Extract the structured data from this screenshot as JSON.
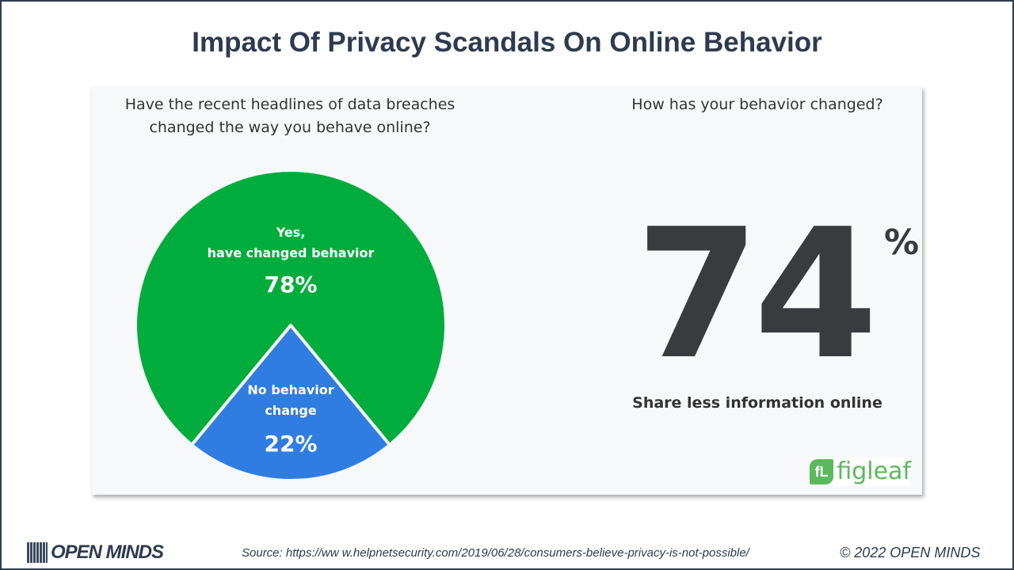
{
  "title": "Impact Of Privacy Scandals On Online Behavior",
  "chart_data": [
    {
      "type": "pie",
      "title": "Have the recent headlines of data breaches changed the way you behave online?",
      "slices": [
        {
          "label_line1": "Yes,",
          "label_line2": "have changed behavior",
          "value": 78,
          "display": "78%",
          "color": "#00ad3c"
        },
        {
          "label_line1": "No behavior",
          "label_line2": "change",
          "value": 22,
          "display": "22%",
          "color": "#2f7de1"
        }
      ]
    },
    {
      "type": "stat",
      "title": "How has your behavior changed?",
      "value": "74",
      "unit": "%",
      "caption": "Share less information online"
    }
  ],
  "brand": {
    "figleaf_mark": "fL",
    "figleaf_word": "figleaf"
  },
  "footer": {
    "logo": "OPEN MINDS",
    "source": "Source: https://ww w.helpnetsecurity.com/2019/06/28/consumers-believe-privacy-is-not-possible/",
    "copyright": "© 2022 OPEN MINDS"
  }
}
